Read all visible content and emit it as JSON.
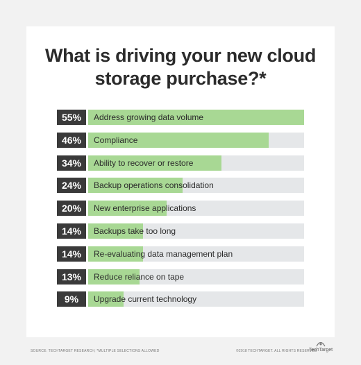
{
  "chart_data": {
    "type": "bar",
    "title": "What is driving your new cloud storage purchase?*",
    "categories": [
      "Address growing data volume",
      "Compliance",
      "Ability to recover or restore",
      "Backup operations consolidation",
      "New enterprise applications",
      "Backups take too long",
      "Re-evaluating data management plan",
      "Reduce reliance on tape",
      "Upgrade current technology"
    ],
    "values": [
      55,
      46,
      34,
      24,
      20,
      14,
      14,
      13,
      9
    ],
    "value_labels": [
      "55%",
      "46%",
      "34%",
      "24%",
      "20%",
      "14%",
      "14%",
      "13%",
      "9%"
    ],
    "xlim": [
      0,
      55
    ],
    "colors": {
      "fill": "#a8d894",
      "track": "#e5e7e9",
      "value_box": "#3a3a3a"
    }
  },
  "footer": {
    "source": "SOURCE: TECHTARGET RESEARCH; *MULTIPLE SELECTIONS ALLOWED",
    "copyright": "©2018 TECHTARGET. ALL RIGHTS RESERVED",
    "logo_text": "TechTarget",
    "logo_icon": "techtarget-logo-icon"
  }
}
